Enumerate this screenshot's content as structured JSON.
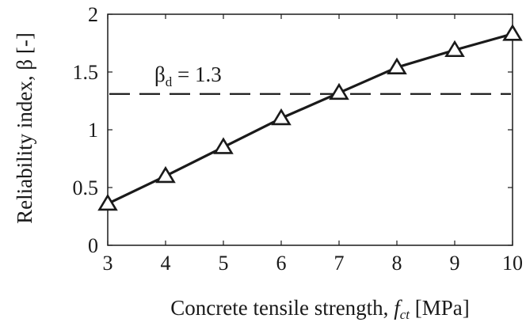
{
  "chart_data": {
    "type": "line",
    "title": "",
    "xlabel_prefix": "Concrete tensile strength, ",
    "xlabel_symbol": "f",
    "xlabel_symbol_sub": "ct",
    "xlabel_suffix": " [MPa]",
    "ylabel": "Reliability index, β [-]",
    "xlim": [
      3,
      10
    ],
    "ylim": [
      0,
      2
    ],
    "xticks": [
      "3",
      "4",
      "5",
      "6",
      "7",
      "8",
      "9",
      "10"
    ],
    "yticks": [
      "0",
      "0.5",
      "1",
      "1.5",
      "2"
    ],
    "grid": false,
    "series": [
      {
        "marker": "triangle",
        "color": "#1a1a1a",
        "x": [
          3,
          4,
          5,
          6,
          7,
          8,
          9,
          10
        ],
        "y": [
          0.36,
          0.6,
          0.85,
          1.1,
          1.32,
          1.54,
          1.69,
          1.83
        ]
      }
    ],
    "reference_line": {
      "y": 1.31,
      "style": "dashed",
      "label_symbol": "β",
      "label_sub": "d",
      "label_rest": " = 1.3"
    }
  }
}
